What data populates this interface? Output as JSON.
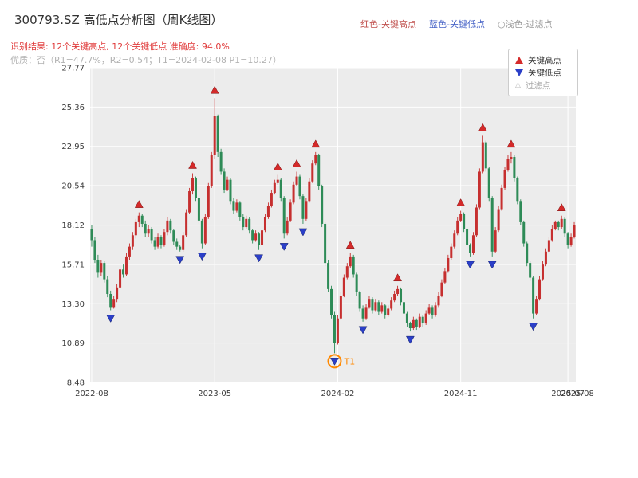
{
  "header": {
    "title": "300793.SZ 高低点分析图（周K线图）",
    "legend_right": [
      {
        "label": "红色-关键高点",
        "color": "#c0504d"
      },
      {
        "label": "蓝色-关键低点",
        "color": "#4a66c8"
      },
      {
        "label": "○浅色-过滤点",
        "color": "#999999"
      }
    ],
    "result_line": "识别结果: 12个关键高点, 12个关键低点  准确度: 94.0%",
    "quality_line": "优质：否（R1=47.7%，R2=0.54；T1=2024-02-08 P1=10.27）"
  },
  "chart_data": {
    "type": "candlestick",
    "x_unit": "week",
    "ylim": [
      8.48,
      27.77
    ],
    "y_ticks": [
      "8.48",
      "10.89",
      "13.30",
      "15.71",
      "18.12",
      "20.54",
      "22.95",
      "25.36",
      "27.77"
    ],
    "x_ticks": [
      {
        "week": 0,
        "label": "2022-08"
      },
      {
        "week": 39,
        "label": "2023-05"
      },
      {
        "week": 78,
        "label": "2024-02"
      },
      {
        "week": 117,
        "label": "2024-11"
      },
      {
        "week": 151,
        "label": "2025-07"
      },
      {
        "week": 154,
        "label": "2025-08"
      }
    ],
    "plot_bg": "#ececec",
    "grid_color": "#ffffff",
    "up_color": "#c62f2f",
    "down_color": "#2e8b57",
    "high_marker_color": "#d42a2a",
    "low_marker_color": "#2b3fc8",
    "candles": [
      [
        17.9,
        18.1,
        16.8,
        17.2
      ],
      [
        17.2,
        17.4,
        15.8,
        16.0
      ],
      [
        16.0,
        16.3,
        14.9,
        15.2
      ],
      [
        15.2,
        16.0,
        15.0,
        15.8
      ],
      [
        15.8,
        15.9,
        14.6,
        14.8
      ],
      [
        14.8,
        15.0,
        13.7,
        13.9
      ],
      [
        13.9,
        14.1,
        12.9,
        13.1
      ],
      [
        13.1,
        13.8,
        13.0,
        13.6
      ],
      [
        13.6,
        14.5,
        13.4,
        14.3
      ],
      [
        14.3,
        15.6,
        14.2,
        15.4
      ],
      [
        15.4,
        15.7,
        14.9,
        15.1
      ],
      [
        15.1,
        16.4,
        15.0,
        16.2
      ],
      [
        16.2,
        17.0,
        16.0,
        16.8
      ],
      [
        16.8,
        17.7,
        16.6,
        17.5
      ],
      [
        17.5,
        18.5,
        17.3,
        18.3
      ],
      [
        18.3,
        18.9,
        18.0,
        18.7
      ],
      [
        18.7,
        18.8,
        18.0,
        18.2
      ],
      [
        18.2,
        18.4,
        17.4,
        17.6
      ],
      [
        17.6,
        18.1,
        17.4,
        17.9
      ],
      [
        17.9,
        18.0,
        17.0,
        17.2
      ],
      [
        17.2,
        17.4,
        16.6,
        16.8
      ],
      [
        16.8,
        17.6,
        16.7,
        17.4
      ],
      [
        17.4,
        17.5,
        16.7,
        16.9
      ],
      [
        16.9,
        17.9,
        16.8,
        17.7
      ],
      [
        17.7,
        18.6,
        17.5,
        18.4
      ],
      [
        18.4,
        18.5,
        17.6,
        17.8
      ],
      [
        17.8,
        17.9,
        16.9,
        17.1
      ],
      [
        17.1,
        17.3,
        16.6,
        16.8
      ],
      [
        16.8,
        16.9,
        16.5,
        16.6
      ],
      [
        16.6,
        17.7,
        16.5,
        17.5
      ],
      [
        17.5,
        19.1,
        17.4,
        18.9
      ],
      [
        18.9,
        20.4,
        18.8,
        20.2
      ],
      [
        20.2,
        21.3,
        20.0,
        21.0
      ],
      [
        21.0,
        21.1,
        19.6,
        19.8
      ],
      [
        19.8,
        19.9,
        18.2,
        18.4
      ],
      [
        18.4,
        18.5,
        16.7,
        17.0
      ],
      [
        17.0,
        18.8,
        16.9,
        18.6
      ],
      [
        18.6,
        20.7,
        18.5,
        20.5
      ],
      [
        20.5,
        22.6,
        20.4,
        22.4
      ],
      [
        22.4,
        25.9,
        22.2,
        24.8
      ],
      [
        24.8,
        24.9,
        22.3,
        22.6
      ],
      [
        22.6,
        22.8,
        21.2,
        21.4
      ],
      [
        21.4,
        21.6,
        20.1,
        20.3
      ],
      [
        20.3,
        21.1,
        20.2,
        20.9
      ],
      [
        20.9,
        21.0,
        19.4,
        19.6
      ],
      [
        19.6,
        19.8,
        18.8,
        19.0
      ],
      [
        19.0,
        19.7,
        18.9,
        19.5
      ],
      [
        19.5,
        19.6,
        18.4,
        18.6
      ],
      [
        18.6,
        18.8,
        17.8,
        18.0
      ],
      [
        18.0,
        18.7,
        17.9,
        18.5
      ],
      [
        18.5,
        18.6,
        17.6,
        17.8
      ],
      [
        17.8,
        17.9,
        17.0,
        17.2
      ],
      [
        17.2,
        17.8,
        17.1,
        17.6
      ],
      [
        17.6,
        17.7,
        16.6,
        16.9
      ],
      [
        16.9,
        18.0,
        16.8,
        17.8
      ],
      [
        17.8,
        18.8,
        17.7,
        18.6
      ],
      [
        18.6,
        19.5,
        18.5,
        19.3
      ],
      [
        19.3,
        20.3,
        19.2,
        20.1
      ],
      [
        20.1,
        20.9,
        20.0,
        20.7
      ],
      [
        20.7,
        21.2,
        20.6,
        20.9
      ],
      [
        20.9,
        21.0,
        19.6,
        19.8
      ],
      [
        19.8,
        19.9,
        17.3,
        17.6
      ],
      [
        17.6,
        18.6,
        17.5,
        18.4
      ],
      [
        18.4,
        19.7,
        18.3,
        19.5
      ],
      [
        19.5,
        20.8,
        19.4,
        20.6
      ],
      [
        20.6,
        21.4,
        20.5,
        21.1
      ],
      [
        21.1,
        21.2,
        19.7,
        19.9
      ],
      [
        19.9,
        20.0,
        18.2,
        18.5
      ],
      [
        18.5,
        19.8,
        18.4,
        19.6
      ],
      [
        19.6,
        21.0,
        19.5,
        20.8
      ],
      [
        20.8,
        22.1,
        20.7,
        21.9
      ],
      [
        21.9,
        22.6,
        21.8,
        22.4
      ],
      [
        22.4,
        22.5,
        20.3,
        20.5
      ],
      [
        20.5,
        20.6,
        18.0,
        18.2
      ],
      [
        18.2,
        18.3,
        15.6,
        15.8
      ],
      [
        15.8,
        16.0,
        14.0,
        14.2
      ],
      [
        14.2,
        14.4,
        12.4,
        12.6
      ],
      [
        12.6,
        12.8,
        10.27,
        10.9
      ],
      [
        10.9,
        12.6,
        10.8,
        12.4
      ],
      [
        12.4,
        14.0,
        12.3,
        13.8
      ],
      [
        13.8,
        15.1,
        13.7,
        14.9
      ],
      [
        14.9,
        15.8,
        14.8,
        15.6
      ],
      [
        15.6,
        16.4,
        15.5,
        16.2
      ],
      [
        16.2,
        16.3,
        14.9,
        15.1
      ],
      [
        15.1,
        15.2,
        13.8,
        14.0
      ],
      [
        14.0,
        14.1,
        12.8,
        13.0
      ],
      [
        13.0,
        13.2,
        12.2,
        12.4
      ],
      [
        12.4,
        13.3,
        12.3,
        13.1
      ],
      [
        13.1,
        13.8,
        13.0,
        13.6
      ],
      [
        13.6,
        13.7,
        12.7,
        12.9
      ],
      [
        12.9,
        13.6,
        12.8,
        13.4
      ],
      [
        13.4,
        13.5,
        12.6,
        12.8
      ],
      [
        12.8,
        13.4,
        12.7,
        13.2
      ],
      [
        13.2,
        13.3,
        12.4,
        12.6
      ],
      [
        12.6,
        13.2,
        12.5,
        13.0
      ],
      [
        13.0,
        13.7,
        12.9,
        13.5
      ],
      [
        13.5,
        14.1,
        13.4,
        13.9
      ],
      [
        13.9,
        14.4,
        13.8,
        14.2
      ],
      [
        14.2,
        14.3,
        13.2,
        13.4
      ],
      [
        13.4,
        13.5,
        12.5,
        12.7
      ],
      [
        12.7,
        12.8,
        11.9,
        12.1
      ],
      [
        12.1,
        12.2,
        11.6,
        11.8
      ],
      [
        11.8,
        12.5,
        11.7,
        12.3
      ],
      [
        12.3,
        12.4,
        11.7,
        11.9
      ],
      [
        11.9,
        12.7,
        11.8,
        12.5
      ],
      [
        12.5,
        12.6,
        11.9,
        12.1
      ],
      [
        12.1,
        12.9,
        12.0,
        12.7
      ],
      [
        12.7,
        13.3,
        12.6,
        13.1
      ],
      [
        13.1,
        13.2,
        12.4,
        12.6
      ],
      [
        12.6,
        13.4,
        12.5,
        13.2
      ],
      [
        13.2,
        14.0,
        13.1,
        13.8
      ],
      [
        13.8,
        14.8,
        13.7,
        14.6
      ],
      [
        14.6,
        15.5,
        14.5,
        15.3
      ],
      [
        15.3,
        16.3,
        15.2,
        16.1
      ],
      [
        16.1,
        17.0,
        16.0,
        16.8
      ],
      [
        16.8,
        17.8,
        16.7,
        17.6
      ],
      [
        17.6,
        18.6,
        17.5,
        18.4
      ],
      [
        18.4,
        19.0,
        18.3,
        18.8
      ],
      [
        18.8,
        18.9,
        17.7,
        17.9
      ],
      [
        17.9,
        18.0,
        16.7,
        16.9
      ],
      [
        16.9,
        17.0,
        16.2,
        16.4
      ],
      [
        16.4,
        17.7,
        16.3,
        17.5
      ],
      [
        17.5,
        19.4,
        17.4,
        19.2
      ],
      [
        19.2,
        21.6,
        19.1,
        21.4
      ],
      [
        21.4,
        23.6,
        21.3,
        23.2
      ],
      [
        23.2,
        23.3,
        21.4,
        21.6
      ],
      [
        21.6,
        21.7,
        19.6,
        19.8
      ],
      [
        19.8,
        19.9,
        16.2,
        16.5
      ],
      [
        16.5,
        18.0,
        16.4,
        17.8
      ],
      [
        17.8,
        19.3,
        17.7,
        19.1
      ],
      [
        19.1,
        20.6,
        19.0,
        20.4
      ],
      [
        20.4,
        21.7,
        20.3,
        21.5
      ],
      [
        21.5,
        22.4,
        21.4,
        22.2
      ],
      [
        22.2,
        22.6,
        21.9,
        22.3
      ],
      [
        22.3,
        22.4,
        20.8,
        21.0
      ],
      [
        21.0,
        21.1,
        19.4,
        19.6
      ],
      [
        19.6,
        19.7,
        18.1,
        18.3
      ],
      [
        18.3,
        18.4,
        16.8,
        17.0
      ],
      [
        17.0,
        17.1,
        15.6,
        15.8
      ],
      [
        15.8,
        15.9,
        14.7,
        14.9
      ],
      [
        14.9,
        15.0,
        12.4,
        12.7
      ],
      [
        12.7,
        13.8,
        12.6,
        13.6
      ],
      [
        13.6,
        15.0,
        13.5,
        14.8
      ],
      [
        14.8,
        15.9,
        14.7,
        15.7
      ],
      [
        15.7,
        16.7,
        15.6,
        16.5
      ],
      [
        16.5,
        17.4,
        16.4,
        17.2
      ],
      [
        17.2,
        18.1,
        17.1,
        17.9
      ],
      [
        17.9,
        18.4,
        17.8,
        18.3
      ],
      [
        18.3,
        18.4,
        17.8,
        18.0
      ],
      [
        18.0,
        18.7,
        17.9,
        18.5
      ],
      [
        18.5,
        18.6,
        17.4,
        17.6
      ],
      [
        17.6,
        17.7,
        16.7,
        16.9
      ],
      [
        16.9,
        17.6,
        16.8,
        17.4
      ],
      [
        17.4,
        18.3,
        17.3,
        18.1
      ]
    ],
    "key_highs": [
      {
        "week": 15,
        "price": 18.9
      },
      {
        "week": 32,
        "price": 21.3
      },
      {
        "week": 39,
        "price": 25.9
      },
      {
        "week": 59,
        "price": 21.2
      },
      {
        "week": 65,
        "price": 21.4
      },
      {
        "week": 71,
        "price": 22.6
      },
      {
        "week": 82,
        "price": 16.4
      },
      {
        "week": 97,
        "price": 14.4
      },
      {
        "week": 117,
        "price": 19.0
      },
      {
        "week": 124,
        "price": 23.6
      },
      {
        "week": 133,
        "price": 22.6
      },
      {
        "week": 149,
        "price": 18.7
      }
    ],
    "key_lows": [
      {
        "week": 6,
        "price": 12.9
      },
      {
        "week": 28,
        "price": 16.5
      },
      {
        "week": 35,
        "price": 16.7
      },
      {
        "week": 53,
        "price": 16.6
      },
      {
        "week": 61,
        "price": 17.3
      },
      {
        "week": 67,
        "price": 18.2
      },
      {
        "week": 77,
        "price": 10.27
      },
      {
        "week": 86,
        "price": 12.2
      },
      {
        "week": 101,
        "price": 11.6
      },
      {
        "week": 120,
        "price": 16.2
      },
      {
        "week": 127,
        "price": 16.2
      },
      {
        "week": 140,
        "price": 12.4
      }
    ],
    "t1_point": {
      "week": 77,
      "price": 10.27,
      "label": "T1",
      "color": "#ff8800"
    },
    "legend_box": {
      "items": [
        {
          "label": "关键高点",
          "marker": "up-triangle",
          "color": "#d42a2a"
        },
        {
          "label": "关键低点",
          "marker": "down-triangle",
          "color": "#2b3fc8"
        },
        {
          "label": "过滤点",
          "marker": "open-triangle",
          "color": "#bbbbbb"
        }
      ]
    }
  }
}
